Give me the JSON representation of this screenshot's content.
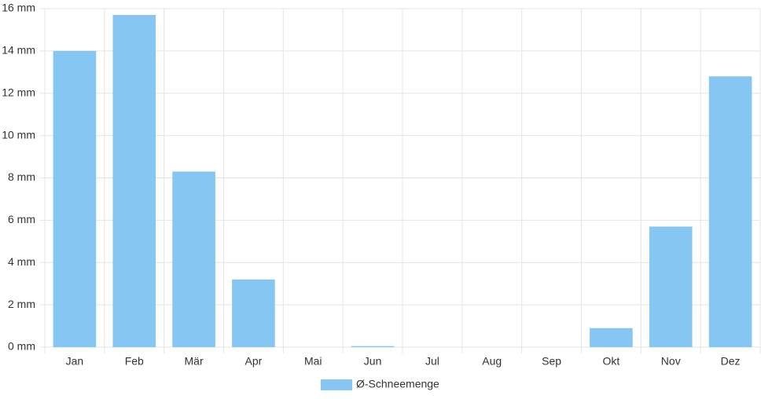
{
  "chart_data": {
    "type": "bar",
    "categories": [
      "Jan",
      "Feb",
      "Mär",
      "Apr",
      "Mai",
      "Jun",
      "Jul",
      "Aug",
      "Sep",
      "Okt",
      "Nov",
      "Dez"
    ],
    "series": [
      {
        "name": "Ø-Schneemenge",
        "color": "#86c6f2",
        "values": [
          14.0,
          15.7,
          8.3,
          3.2,
          0,
          0.05,
          0,
          0,
          0,
          0.9,
          5.7,
          12.8
        ]
      }
    ],
    "ylim": [
      0,
      16
    ],
    "yticks": [
      {
        "value": 0,
        "label": "0 mm"
      },
      {
        "value": 2,
        "label": "2 mm"
      },
      {
        "value": 4,
        "label": "4 mm"
      },
      {
        "value": 6,
        "label": "6 mm"
      },
      {
        "value": 8,
        "label": "8 mm"
      },
      {
        "value": 10,
        "label": "10 mm"
      },
      {
        "value": 12,
        "label": "12 mm"
      },
      {
        "value": 14,
        "label": "14 mm"
      },
      {
        "value": 16,
        "label": "16 mm"
      }
    ],
    "grid": true
  }
}
